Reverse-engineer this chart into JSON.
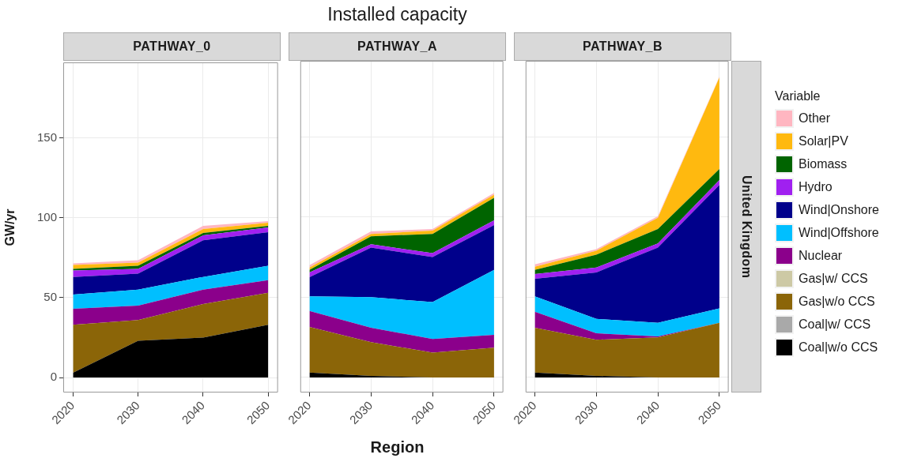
{
  "chart_data": [
    {
      "type": "area",
      "stacked": true,
      "subtitle": "PATHWAY_0",
      "ylabel": "GW/yr",
      "x": [
        2020,
        2030,
        2040,
        2050
      ],
      "xlim": [
        2018.5,
        2051.5
      ],
      "xticks": [
        2020,
        2030,
        2040,
        2050
      ],
      "ylim": [
        -9.4,
        197.4
      ],
      "yticks": [
        0,
        50,
        100,
        150
      ],
      "grid": true,
      "legend": false,
      "series": [
        {
          "color": "#000000",
          "values": [
            3,
            23,
            25,
            33
          ]
        },
        {
          "color": "#8b6508",
          "values": [
            30,
            13,
            21,
            20
          ]
        },
        {
          "color": "#8b008b",
          "values": [
            10,
            9,
            9,
            8
          ]
        },
        {
          "color": "#00bfff",
          "values": [
            9,
            10,
            8,
            9
          ]
        },
        {
          "color": "#00008b",
          "values": [
            11,
            10,
            23,
            21
          ]
        },
        {
          "color": "#a020f0",
          "values": [
            4,
            3,
            3,
            3
          ]
        },
        {
          "color": "#006400",
          "values": [
            1,
            2,
            1.5,
            1
          ]
        },
        {
          "color": "#ffb90f",
          "values": [
            2.5,
            2,
            2.5,
            2
          ]
        },
        {
          "color": "#ffb6c1",
          "values": [
            1,
            1.5,
            2,
            1
          ]
        }
      ]
    },
    {
      "type": "area",
      "stacked": true,
      "title": "Installed capacity",
      "subtitle": "PATHWAY_A",
      "xlabel": "Region",
      "x": [
        2020,
        2030,
        2040,
        2050
      ],
      "xlim": [
        2018.5,
        2051.5
      ],
      "xticks": [
        2020,
        2030,
        2040,
        2050
      ],
      "ylim": [
        -9.4,
        197.4
      ],
      "yticks": [
        0,
        50,
        100,
        150
      ],
      "grid": true,
      "legend": false,
      "tick_labels": "x",
      "series": [
        {
          "color": "#000000",
          "values": [
            3,
            1,
            0,
            0
          ]
        },
        {
          "color": "#8b6508",
          "values": [
            28.5,
            21,
            15.5,
            18.5
          ]
        },
        {
          "color": "#8b008b",
          "values": [
            10,
            9,
            8.5,
            8
          ]
        },
        {
          "color": "#00bfff",
          "values": [
            9,
            19,
            23,
            40.5
          ]
        },
        {
          "color": "#00008b",
          "values": [
            12,
            31,
            28,
            28
          ]
        },
        {
          "color": "#a020f0",
          "values": [
            3,
            2,
            2.5,
            3
          ]
        },
        {
          "color": "#006400",
          "values": [
            1.5,
            5,
            12,
            14
          ]
        },
        {
          "color": "#ffb90f",
          "values": [
            1.5,
            1.5,
            2,
            2
          ]
        },
        {
          "color": "#ffb6c1",
          "values": [
            1.5,
            1.5,
            1,
            1
          ]
        }
      ]
    },
    {
      "type": "area",
      "stacked": true,
      "subtitle": "PATHWAY_B",
      "annotations": [
        "United Kingdom"
      ],
      "legend_title": "Variable",
      "legend": "right",
      "x": [
        2020,
        2030,
        2040,
        2050
      ],
      "xlim": [
        2018.5,
        2051.5
      ],
      "xticks": [
        2020,
        2030,
        2040,
        2050
      ],
      "ylim": [
        -9.4,
        197.4
      ],
      "yticks": [
        0,
        50,
        100,
        150
      ],
      "grid": true,
      "tick_labels": "x",
      "series": [
        {
          "name": "Coal|w/o CCS",
          "color": "#000000",
          "values": [
            3,
            1,
            0,
            0
          ]
        },
        {
          "name": "Coal|w/ CCS",
          "color": "#a9a9a9",
          "values": [
            null,
            null,
            null,
            null
          ]
        },
        {
          "name": "Gas|w/o CCS",
          "color": "#8b6508",
          "values": [
            28,
            22.5,
            25,
            34
          ]
        },
        {
          "name": "Gas|w/ CCS",
          "color": "#cdc9a5",
          "values": [
            null,
            null,
            null,
            null
          ]
        },
        {
          "name": "Nuclear",
          "color": "#8b008b",
          "values": [
            10,
            4,
            0.5,
            0
          ]
        },
        {
          "name": "Wind|Offshore",
          "color": "#00bfff",
          "values": [
            9.5,
            9,
            8.5,
            9
          ]
        },
        {
          "name": "Wind|Onshore",
          "color": "#00008b",
          "values": [
            11,
            29,
            47,
            77
          ]
        },
        {
          "name": "Hydro",
          "color": "#a020f0",
          "values": [
            3,
            3,
            2.5,
            3
          ]
        },
        {
          "name": "Biomass",
          "color": "#006400",
          "values": [
            2.5,
            8,
            9,
            7
          ]
        },
        {
          "name": "Solar|PV",
          "color": "#ffb90f",
          "values": [
            2,
            2.5,
            7,
            57
          ]
        },
        {
          "name": "Other",
          "color": "#ffb6c1",
          "values": [
            1.5,
            1,
            1,
            0.5
          ]
        }
      ]
    }
  ]
}
